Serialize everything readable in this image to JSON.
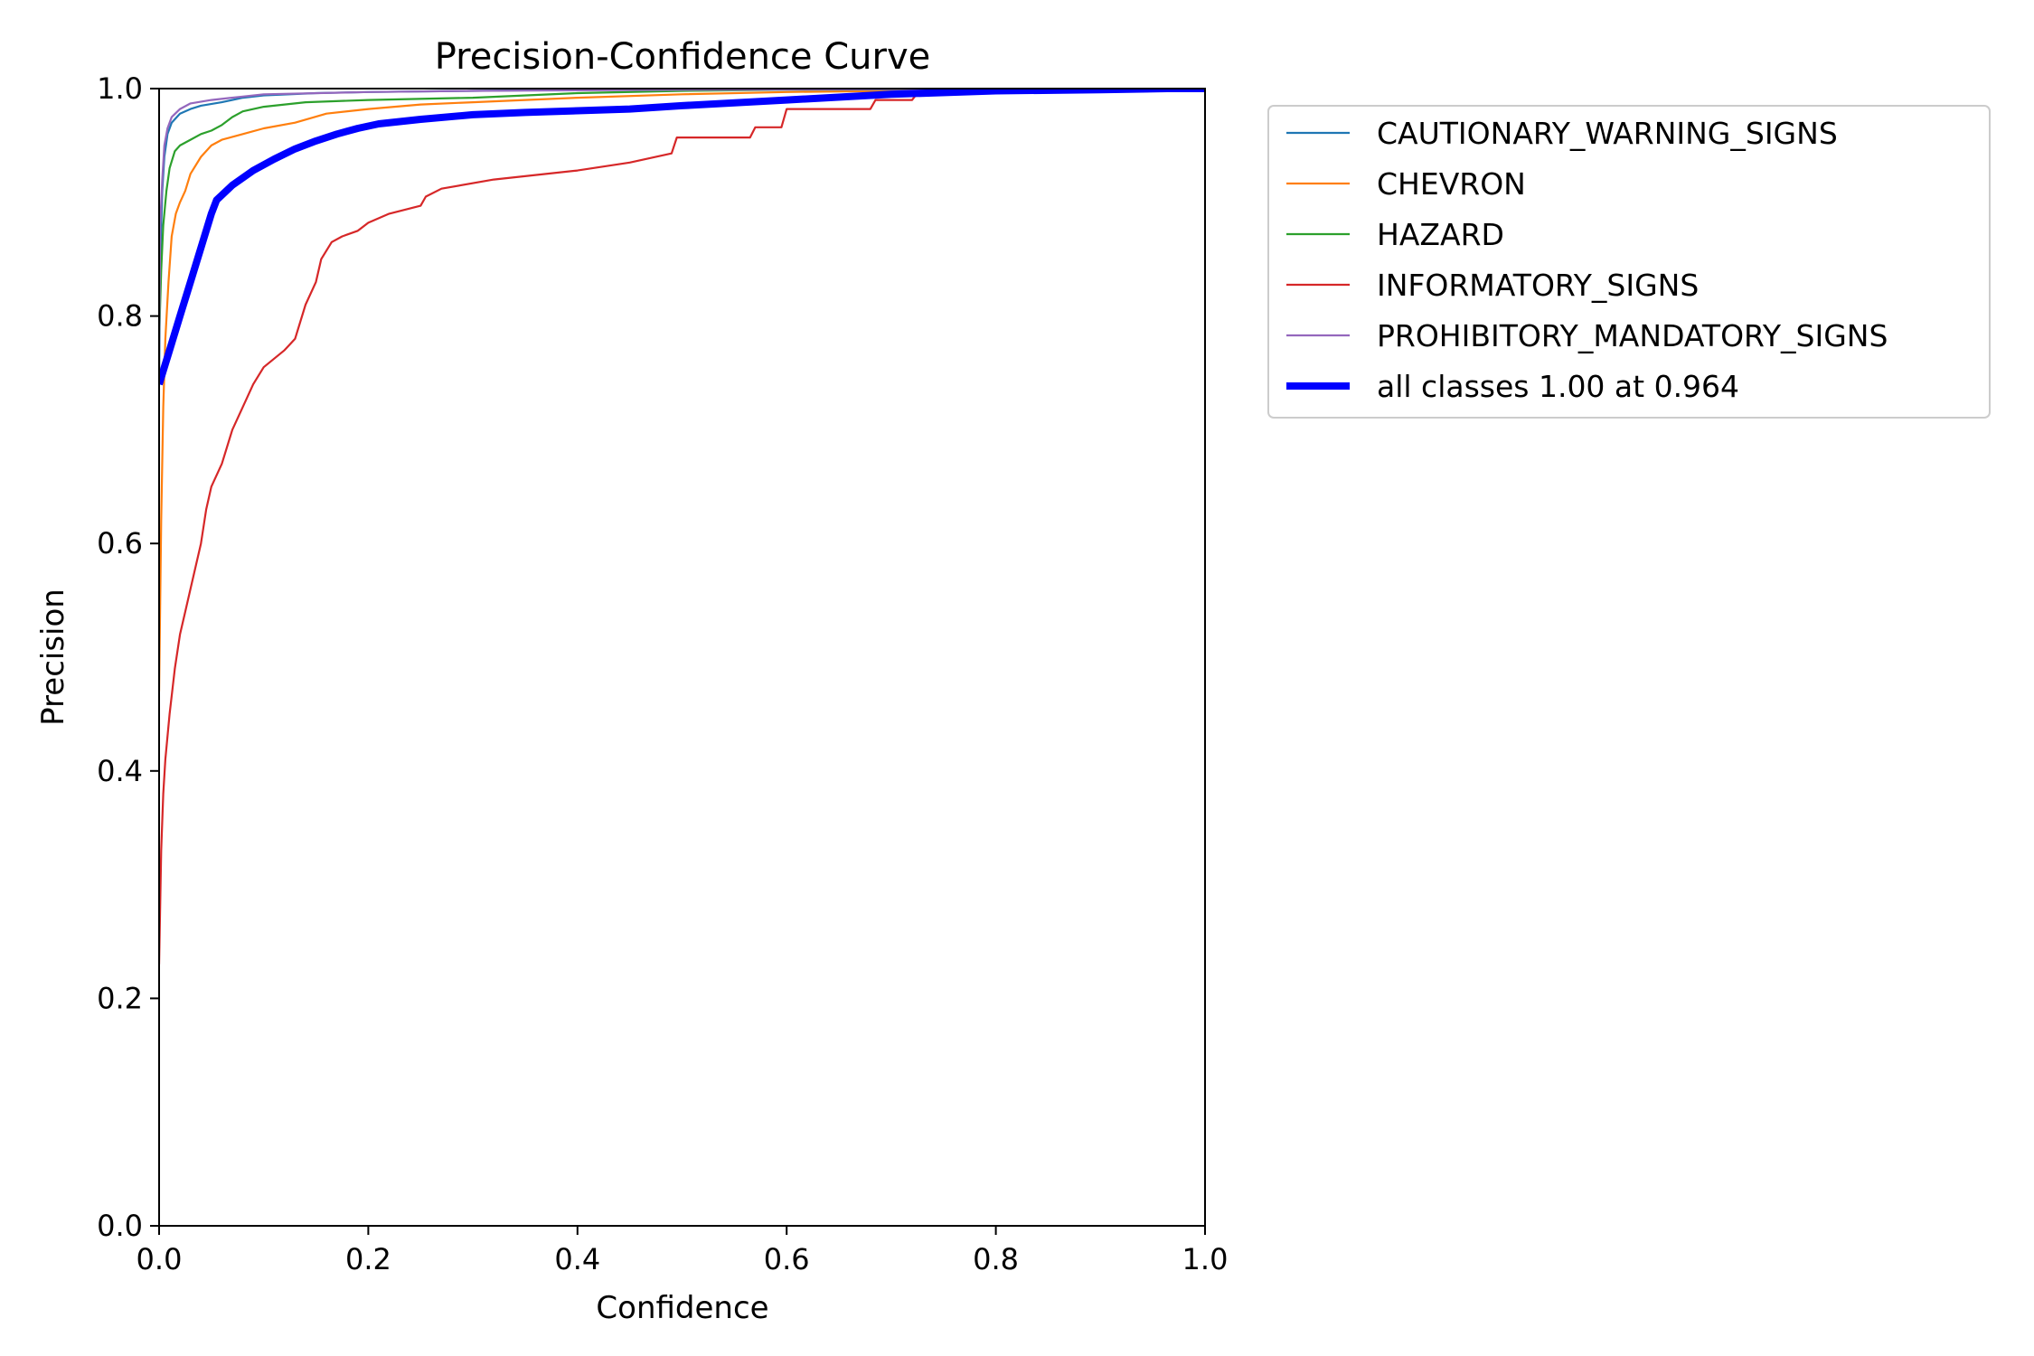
{
  "chart_data": {
    "type": "line",
    "title": "Precision-Confidence Curve",
    "xlabel": "Confidence",
    "ylabel": "Precision",
    "xlim": [
      0,
      1
    ],
    "ylim": [
      0,
      1
    ],
    "x_ticks": [
      "0.0",
      "0.2",
      "0.4",
      "0.6",
      "0.8",
      "1.0"
    ],
    "y_ticks": [
      "0.0",
      "0.2",
      "0.4",
      "0.6",
      "0.8",
      "1.0"
    ],
    "grid": false,
    "legend_position": "outside-right-top",
    "series": [
      {
        "name": "CAUTIONARY_WARNING_SIGNS",
        "color": "#1f77b4",
        "line_width": 2.2,
        "points": [
          [
            0.0,
            0.74
          ],
          [
            0.001,
            0.85
          ],
          [
            0.003,
            0.91
          ],
          [
            0.005,
            0.94
          ],
          [
            0.008,
            0.96
          ],
          [
            0.012,
            0.97
          ],
          [
            0.02,
            0.978
          ],
          [
            0.03,
            0.982
          ],
          [
            0.04,
            0.985
          ],
          [
            0.06,
            0.988
          ],
          [
            0.08,
            0.992
          ],
          [
            0.1,
            0.994
          ],
          [
            0.15,
            0.996
          ],
          [
            0.2,
            0.997
          ],
          [
            0.3,
            0.998
          ],
          [
            0.4,
            0.999
          ],
          [
            0.5,
            0.9995
          ],
          [
            0.7,
            0.9998
          ],
          [
            1.0,
            1.0
          ]
        ]
      },
      {
        "name": "CHEVRON",
        "color": "#ff7f0e",
        "line_width": 2.2,
        "points": [
          [
            0.0,
            0.47
          ],
          [
            0.002,
            0.62
          ],
          [
            0.004,
            0.72
          ],
          [
            0.006,
            0.78
          ],
          [
            0.009,
            0.83
          ],
          [
            0.012,
            0.87
          ],
          [
            0.016,
            0.89
          ],
          [
            0.02,
            0.9
          ],
          [
            0.025,
            0.91
          ],
          [
            0.03,
            0.925
          ],
          [
            0.04,
            0.94
          ],
          [
            0.05,
            0.95
          ],
          [
            0.06,
            0.955
          ],
          [
            0.08,
            0.96
          ],
          [
            0.1,
            0.965
          ],
          [
            0.13,
            0.97
          ],
          [
            0.16,
            0.978
          ],
          [
            0.2,
            0.982
          ],
          [
            0.25,
            0.986
          ],
          [
            0.3,
            0.988
          ],
          [
            0.4,
            0.992
          ],
          [
            0.5,
            0.995
          ],
          [
            0.6,
            0.997
          ],
          [
            0.7,
            0.998
          ],
          [
            0.8,
            0.999
          ],
          [
            1.0,
            1.0
          ]
        ]
      },
      {
        "name": "HAZARD",
        "color": "#2ca02c",
        "line_width": 2.2,
        "points": [
          [
            0.0,
            0.78
          ],
          [
            0.002,
            0.84
          ],
          [
            0.004,
            0.88
          ],
          [
            0.007,
            0.91
          ],
          [
            0.01,
            0.93
          ],
          [
            0.015,
            0.945
          ],
          [
            0.02,
            0.95
          ],
          [
            0.03,
            0.955
          ],
          [
            0.04,
            0.96
          ],
          [
            0.05,
            0.963
          ],
          [
            0.06,
            0.968
          ],
          [
            0.07,
            0.975
          ],
          [
            0.08,
            0.98
          ],
          [
            0.1,
            0.984
          ],
          [
            0.14,
            0.988
          ],
          [
            0.2,
            0.99
          ],
          [
            0.3,
            0.992
          ],
          [
            0.4,
            0.996
          ],
          [
            0.5,
            0.998
          ],
          [
            0.6,
            0.999
          ],
          [
            1.0,
            1.0
          ]
        ]
      },
      {
        "name": "INFORMATORY_SIGNS",
        "color": "#d62728",
        "line_width": 2.2,
        "points": [
          [
            0.0,
            0.23
          ],
          [
            0.002,
            0.33
          ],
          [
            0.004,
            0.38
          ],
          [
            0.006,
            0.41
          ],
          [
            0.01,
            0.45
          ],
          [
            0.015,
            0.49
          ],
          [
            0.02,
            0.52
          ],
          [
            0.025,
            0.54
          ],
          [
            0.03,
            0.56
          ],
          [
            0.035,
            0.58
          ],
          [
            0.04,
            0.6
          ],
          [
            0.045,
            0.63
          ],
          [
            0.05,
            0.65
          ],
          [
            0.06,
            0.67
          ],
          [
            0.07,
            0.7
          ],
          [
            0.08,
            0.72
          ],
          [
            0.09,
            0.74
          ],
          [
            0.1,
            0.755
          ],
          [
            0.12,
            0.77
          ],
          [
            0.13,
            0.78
          ],
          [
            0.14,
            0.81
          ],
          [
            0.15,
            0.83
          ],
          [
            0.155,
            0.85
          ],
          [
            0.165,
            0.865
          ],
          [
            0.175,
            0.87
          ],
          [
            0.19,
            0.875
          ],
          [
            0.2,
            0.882
          ],
          [
            0.22,
            0.89
          ],
          [
            0.25,
            0.897
          ],
          [
            0.255,
            0.905
          ],
          [
            0.27,
            0.912
          ],
          [
            0.32,
            0.92
          ],
          [
            0.4,
            0.928
          ],
          [
            0.45,
            0.935
          ],
          [
            0.49,
            0.943
          ],
          [
            0.495,
            0.957
          ],
          [
            0.565,
            0.957
          ],
          [
            0.57,
            0.966
          ],
          [
            0.595,
            0.966
          ],
          [
            0.6,
            0.982
          ],
          [
            0.68,
            0.982
          ],
          [
            0.685,
            0.99
          ],
          [
            0.72,
            0.99
          ],
          [
            0.725,
            0.996
          ],
          [
            0.8,
            0.999
          ],
          [
            1.0,
            1.0
          ]
        ]
      },
      {
        "name": "PROHIBITORY_MANDATORY_SIGNS",
        "color": "#9467bd",
        "line_width": 2.2,
        "points": [
          [
            0.0,
            0.77
          ],
          [
            0.001,
            0.88
          ],
          [
            0.003,
            0.92
          ],
          [
            0.005,
            0.95
          ],
          [
            0.008,
            0.965
          ],
          [
            0.012,
            0.975
          ],
          [
            0.02,
            0.982
          ],
          [
            0.03,
            0.987
          ],
          [
            0.05,
            0.99
          ],
          [
            0.08,
            0.993
          ],
          [
            0.1,
            0.995
          ],
          [
            0.2,
            0.997
          ],
          [
            0.3,
            0.998
          ],
          [
            0.5,
            0.999
          ],
          [
            1.0,
            1.0
          ]
        ]
      },
      {
        "name": "all classes 1.00 at 0.964",
        "color": "#0000ff",
        "line_width": 8,
        "points": [
          [
            0.0,
            0.74
          ],
          [
            0.01,
            0.77
          ],
          [
            0.02,
            0.8
          ],
          [
            0.03,
            0.83
          ],
          [
            0.04,
            0.86
          ],
          [
            0.05,
            0.89
          ],
          [
            0.055,
            0.902
          ],
          [
            0.07,
            0.915
          ],
          [
            0.09,
            0.928
          ],
          [
            0.11,
            0.938
          ],
          [
            0.13,
            0.947
          ],
          [
            0.15,
            0.954
          ],
          [
            0.17,
            0.96
          ],
          [
            0.19,
            0.965
          ],
          [
            0.21,
            0.969
          ],
          [
            0.25,
            0.973
          ],
          [
            0.3,
            0.977
          ],
          [
            0.35,
            0.979
          ],
          [
            0.45,
            0.982
          ],
          [
            0.5,
            0.985
          ],
          [
            0.6,
            0.99
          ],
          [
            0.7,
            0.995
          ],
          [
            0.8,
            0.998
          ],
          [
            0.9,
            0.999
          ],
          [
            0.964,
            1.0
          ],
          [
            1.0,
            1.0
          ]
        ]
      }
    ]
  }
}
